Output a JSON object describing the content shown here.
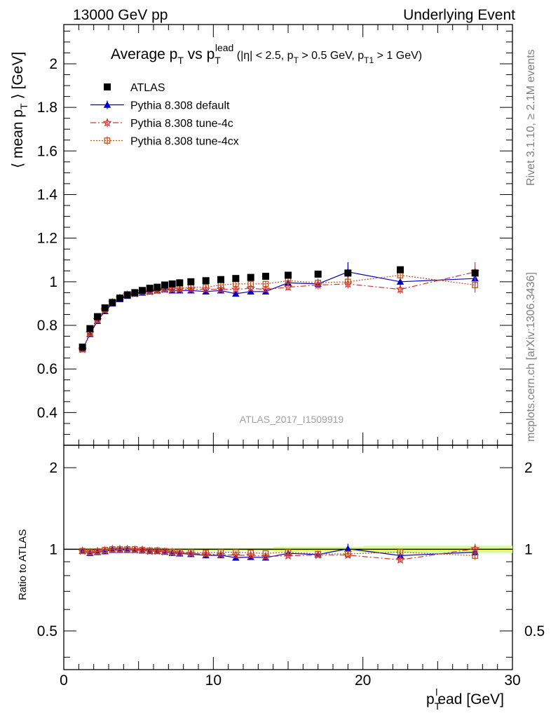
{
  "header": {
    "left": "13000 GeV pp",
    "right": "Underlying Event"
  },
  "side": {
    "rivet": "Rivet 3.1.10, ≥ 2.1M events",
    "mcplots": "mcplots.cern.ch [arXiv:1306.3436]"
  },
  "chart_data": {
    "type": "scatter",
    "title": "Average p_T vs p_T^lead (|η| < 2.5, p_T > 0.5 GeV, p_T1 > 1 GeV)",
    "title_parts": {
      "a": "Average p",
      "a_sub": "T",
      "b": " vs p",
      "b_sub": "T",
      "b_sup": "lead",
      "c": " (|η| < 2.5, p",
      "c_sub": "T",
      "d": " > 0.5 GeV, p",
      "d_sub": "T1",
      "e": " > 1 GeV)"
    },
    "analysis_label": "ATLAS_2017_I1509919",
    "ylabel": "⟨ mean p_T ⟩ [GeV]",
    "ylabel_parts": {
      "main": "⟨ mean p",
      "sub": "T",
      "tail": " ⟩ [GeV]"
    },
    "xlabel": "p_T^lead [GeV]",
    "xlabel_parts": {
      "main": "p",
      "sub": "T",
      "sup": "l",
      "tail": "ead [GeV]"
    },
    "ratio_ylabel": "Ratio to ATLAS",
    "xlim": [
      0,
      30
    ],
    "ylim": [
      0.25,
      2.18
    ],
    "ratio_ylim": [
      0.36,
      2.42
    ],
    "ratio_log": true,
    "x_ticks": [
      "0",
      "10",
      "20",
      "30"
    ],
    "y_ticks": [
      "0.4",
      "0.6",
      "0.8",
      "1",
      "1.2",
      "1.4",
      "1.6",
      "1.8",
      "2"
    ],
    "ratio_ticks": [
      "0.5",
      "1",
      "2"
    ],
    "x": [
      1.25,
      1.75,
      2.25,
      2.75,
      3.25,
      3.75,
      4.25,
      4.75,
      5.25,
      5.75,
      6.25,
      6.75,
      7.25,
      7.75,
      8.5,
      9.5,
      10.5,
      11.5,
      12.5,
      13.5,
      15.0,
      17.0,
      19.0,
      22.5,
      27.5
    ],
    "series": [
      {
        "name": "ATLAS",
        "color": "#000000",
        "marker": "square-filled",
        "line": "none",
        "values": [
          0.7,
          0.785,
          0.84,
          0.88,
          0.905,
          0.925,
          0.94,
          0.95,
          0.96,
          0.97,
          0.975,
          0.985,
          0.99,
          0.995,
          1.0,
          1.005,
          1.01,
          1.015,
          1.02,
          1.025,
          1.03,
          1.035,
          1.04,
          1.055,
          1.04
        ]
      },
      {
        "name": "Pythia 8.308 default",
        "color": "#0000cc",
        "marker": "triangle-filled",
        "line": "solid",
        "values": [
          0.69,
          0.76,
          0.82,
          0.865,
          0.9,
          0.92,
          0.935,
          0.945,
          0.95,
          0.955,
          0.96,
          0.965,
          0.96,
          0.96,
          0.96,
          0.955,
          0.96,
          0.945,
          0.955,
          0.955,
          0.995,
          0.99,
          1.045,
          1.0,
          1.015
        ],
        "errors": [
          0.005,
          0.005,
          0.005,
          0.005,
          0.005,
          0.005,
          0.005,
          0.005,
          0.005,
          0.005,
          0.005,
          0.005,
          0.005,
          0.005,
          0.005,
          0.005,
          0.008,
          0.008,
          0.01,
          0.01,
          0.015,
          0.02,
          0.045,
          0.02,
          0.035
        ]
      },
      {
        "name": "Pythia 8.308 tune-4c",
        "color": "#e03030",
        "marker": "star-open",
        "line": "dashdot",
        "values": [
          0.69,
          0.765,
          0.825,
          0.87,
          0.905,
          0.925,
          0.94,
          0.945,
          0.955,
          0.955,
          0.96,
          0.965,
          0.965,
          0.965,
          0.965,
          0.965,
          0.965,
          0.965,
          0.97,
          0.965,
          0.975,
          0.985,
          0.99,
          0.965,
          1.045
        ],
        "errors": [
          0.005,
          0.005,
          0.005,
          0.005,
          0.005,
          0.005,
          0.005,
          0.005,
          0.005,
          0.005,
          0.005,
          0.005,
          0.005,
          0.005,
          0.005,
          0.005,
          0.008,
          0.008,
          0.01,
          0.01,
          0.015,
          0.02,
          0.02,
          0.02,
          0.045
        ]
      },
      {
        "name": "Pythia 8.308 tune-4cx",
        "color": "#c05020",
        "marker": "square-open",
        "line": "dotted",
        "values": [
          0.69,
          0.765,
          0.825,
          0.875,
          0.905,
          0.925,
          0.94,
          0.95,
          0.955,
          0.96,
          0.965,
          0.97,
          0.97,
          0.97,
          0.975,
          0.975,
          0.985,
          0.99,
          0.99,
          0.99,
          1.005,
          0.995,
          1.0,
          1.03,
          0.985
        ],
        "errors": [
          0.005,
          0.005,
          0.005,
          0.005,
          0.005,
          0.005,
          0.005,
          0.005,
          0.005,
          0.005,
          0.005,
          0.005,
          0.005,
          0.005,
          0.005,
          0.005,
          0.008,
          0.008,
          0.01,
          0.01,
          0.015,
          0.02,
          0.02,
          0.02,
          0.035
        ]
      }
    ],
    "data_band": {
      "color_inner": "#ffff66",
      "color_outer": "#ccff99"
    },
    "grid": false,
    "legend_position": "top-left"
  }
}
